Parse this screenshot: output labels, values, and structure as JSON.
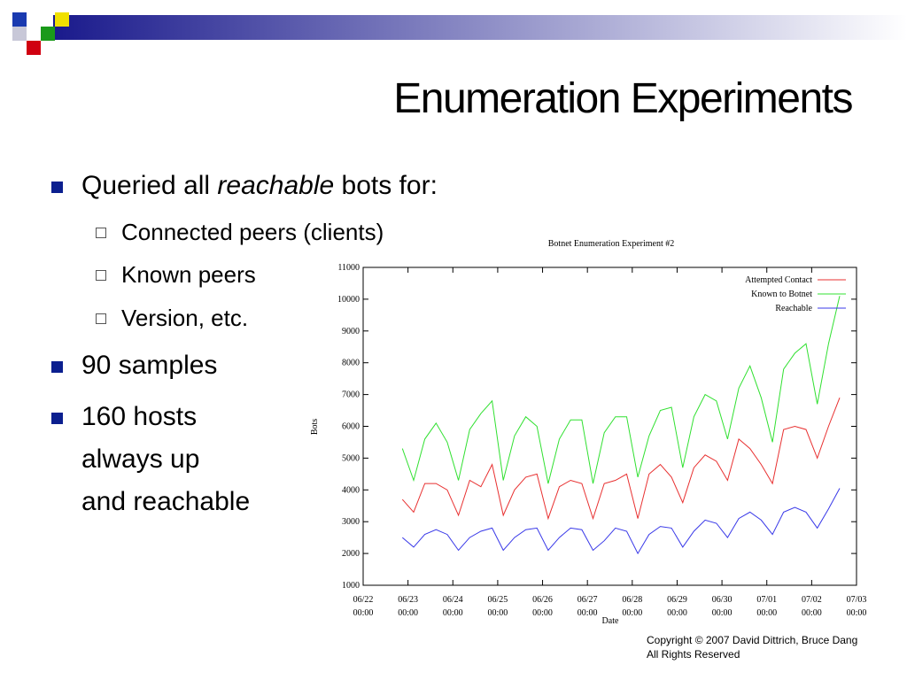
{
  "header": {
    "title": "Enumeration Experiments"
  },
  "bullets": {
    "first": [
      "Queried all ",
      "reachable",
      " bots for:"
    ],
    "sub": [
      "Connected peers (clients)",
      "Known peers",
      "Version, etc."
    ],
    "second": "90 samples",
    "third": [
      "160 hosts",
      "always up",
      "and reachable"
    ]
  },
  "footer": [
    "Copyright © 2007 David Dittrich, Bruce Dang",
    "All Rights Reserved"
  ],
  "chart_data": {
    "type": "line",
    "title": "Botnet Enumeration Experiment #2",
    "x_label": "Date",
    "y_label": "Bots",
    "x": [
      "06/22 21:00",
      "06/23 03:00",
      "06/23 09:00",
      "06/23 15:00",
      "06/23 21:00",
      "06/24 03:00",
      "06/24 09:00",
      "06/24 15:00",
      "06/24 21:00",
      "06/25 03:00",
      "06/25 09:00",
      "06/25 15:00",
      "06/25 21:00",
      "06/26 03:00",
      "06/26 09:00",
      "06/26 15:00",
      "06/26 21:00",
      "06/27 03:00",
      "06/27 09:00",
      "06/27 15:00",
      "06/27 21:00",
      "06/28 03:00",
      "06/28 09:00",
      "06/28 15:00",
      "06/28 21:00",
      "06/29 03:00",
      "06/29 09:00",
      "06/29 15:00",
      "06/29 21:00",
      "06/30 03:00",
      "06/30 09:00",
      "06/30 15:00",
      "06/30 21:00",
      "07/01 03:00",
      "07/01 09:00",
      "07/01 15:00",
      "07/01 21:00",
      "07/02 03:00",
      "07/02 09:00",
      "07/02 15:00"
    ],
    "series": [
      {
        "name": "Attempted Contact",
        "color": "#e83030",
        "values": [
          3700,
          3300,
          4200,
          4200,
          4000,
          3200,
          4300,
          4100,
          4800,
          3200,
          4000,
          4400,
          4500,
          3100,
          4100,
          4300,
          4200,
          3100,
          4200,
          4300,
          4500,
          3100,
          4500,
          4800,
          4400,
          3600,
          4700,
          5100,
          4900,
          4300,
          5600,
          5300,
          4800,
          4200,
          5900,
          6000,
          5900,
          5000,
          6000,
          6900
        ]
      },
      {
        "name": "Known to Botnet",
        "color": "#30e030",
        "values": [
          5300,
          4300,
          5600,
          6100,
          5500,
          4300,
          5900,
          6400,
          6800,
          4300,
          5700,
          6300,
          6000,
          4200,
          5600,
          6200,
          6200,
          4200,
          5800,
          6300,
          6300,
          4400,
          5700,
          6500,
          6600,
          4700,
          6300,
          7000,
          6800,
          5600,
          7200,
          7900,
          6900,
          5500,
          7800,
          8300,
          8600,
          6700,
          8600,
          10100
        ]
      },
      {
        "name": "Reachable",
        "color": "#3838e8",
        "values": [
          2500,
          2200,
          2600,
          2750,
          2600,
          2100,
          2500,
          2700,
          2800,
          2100,
          2500,
          2750,
          2800,
          2100,
          2500,
          2800,
          2750,
          2100,
          2400,
          2800,
          2700,
          2000,
          2600,
          2850,
          2800,
          2200,
          2700,
          3050,
          2950,
          2500,
          3100,
          3300,
          3050,
          2600,
          3300,
          3450,
          3300,
          2800,
          3400,
          4050
        ]
      }
    ],
    "xlim": [
      "06/22 00:00",
      "07/03 00:00"
    ],
    "xticks": [
      "06/22 00:00",
      "06/23 00:00",
      "06/24 00:00",
      "06/25 00:00",
      "06/26 00:00",
      "06/27 00:00",
      "06/28 00:00",
      "06/29 00:00",
      "06/30 00:00",
      "07/01 00:00",
      "07/02 00:00",
      "07/03 00:00"
    ],
    "ylim": [
      1000,
      11000
    ],
    "yticks": [
      1000,
      2000,
      3000,
      4000,
      5000,
      6000,
      7000,
      8000,
      9000,
      10000,
      11000
    ],
    "grid": false,
    "legend": "top-right"
  }
}
